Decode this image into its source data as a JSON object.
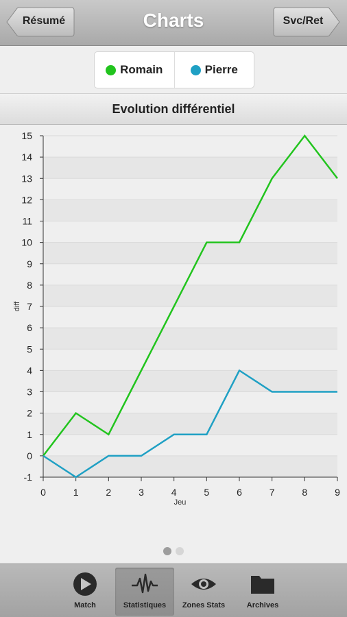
{
  "header": {
    "title": "Charts",
    "back_label": "Résumé",
    "forward_label": "Svc/Ret"
  },
  "legend": {
    "items": [
      {
        "label": "Romain",
        "color": "#22c41e"
      },
      {
        "label": "Pierre",
        "color": "#1fa0c4"
      }
    ]
  },
  "section_title": "Evolution différentiel",
  "chart_data": {
    "type": "line",
    "title": "Evolution différentiel",
    "xlabel": "Jeu",
    "ylabel": "diff",
    "x": [
      0,
      1,
      2,
      3,
      4,
      5,
      6,
      7,
      8,
      9
    ],
    "xlim": [
      0,
      9
    ],
    "ylim": [
      -1,
      15
    ],
    "yticks": [
      -1,
      0,
      1,
      2,
      3,
      4,
      5,
      6,
      7,
      8,
      9,
      10,
      11,
      12,
      13,
      14,
      15
    ],
    "series": [
      {
        "name": "Romain",
        "color": "#22c41e",
        "values": [
          0,
          2,
          1,
          4,
          7,
          10,
          10,
          13,
          15,
          13
        ]
      },
      {
        "name": "Pierre",
        "color": "#1fa0c4",
        "values": [
          0,
          -1,
          0,
          0,
          1,
          1,
          4,
          3,
          3,
          3
        ]
      }
    ],
    "grid": true,
    "legend": "top"
  },
  "pager": {
    "count": 2,
    "active": 0
  },
  "tabs": [
    {
      "label": "Match",
      "icon": "play-icon"
    },
    {
      "label": "Statistiques",
      "icon": "pulse-icon",
      "active": true
    },
    {
      "label": "Zones Stats",
      "icon": "eye-icon"
    },
    {
      "label": "Archives",
      "icon": "folder-icon"
    }
  ]
}
